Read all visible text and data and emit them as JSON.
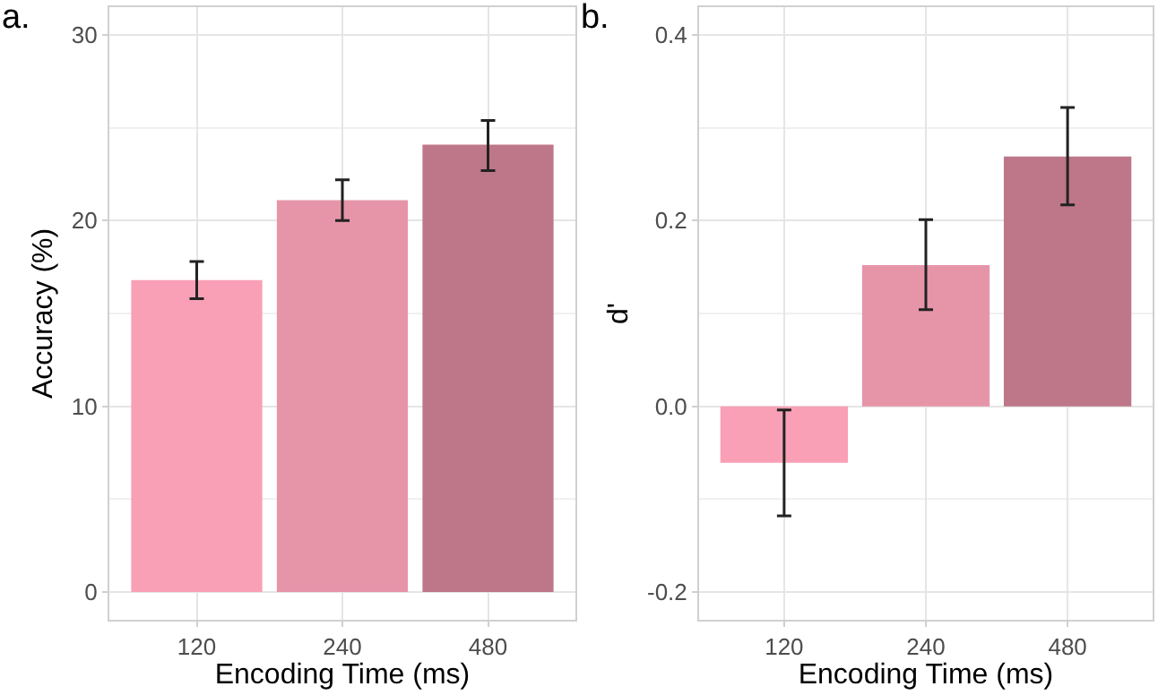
{
  "chart_data": [
    {
      "type": "bar",
      "title": "a.",
      "xlabel": "Encoding Time (ms)",
      "ylabel": "Accuracy (%)",
      "categories": [
        "120",
        "240",
        "480"
      ],
      "values": [
        16.8,
        21.1,
        24.1
      ],
      "colors": [
        "#f9a0b6",
        "#e695a9",
        "#be7689"
      ],
      "errors": [
        [
          15.8,
          17.8
        ],
        [
          20.0,
          22.2
        ],
        [
          22.7,
          25.4
        ]
      ],
      "ylim": [
        -1.5,
        31.5
      ],
      "yticks": [
        0,
        10,
        20,
        30
      ],
      "grid": true
    },
    {
      "type": "bar",
      "title": "b.",
      "xlabel": "Encoding Time (ms)",
      "ylabel": "d'",
      "categories": [
        "120",
        "240",
        "480"
      ],
      "values": [
        -0.061,
        0.152,
        0.269
      ],
      "colors": [
        "#f9a0b6",
        "#e695a9",
        "#be7689"
      ],
      "errors": [
        [
          -0.118,
          -0.004
        ],
        [
          0.104,
          0.201
        ],
        [
          0.217,
          0.322
        ]
      ],
      "ylim": [
        -0.23,
        0.43
      ],
      "yticks": [
        {
          "value": -0.2,
          "label": "-0.2"
        },
        {
          "value": 0,
          "label": "0.0"
        },
        {
          "value": 0.2,
          "label": "0.2"
        },
        {
          "value": 0.4,
          "label": "0.4"
        }
      ],
      "grid": true
    }
  ]
}
